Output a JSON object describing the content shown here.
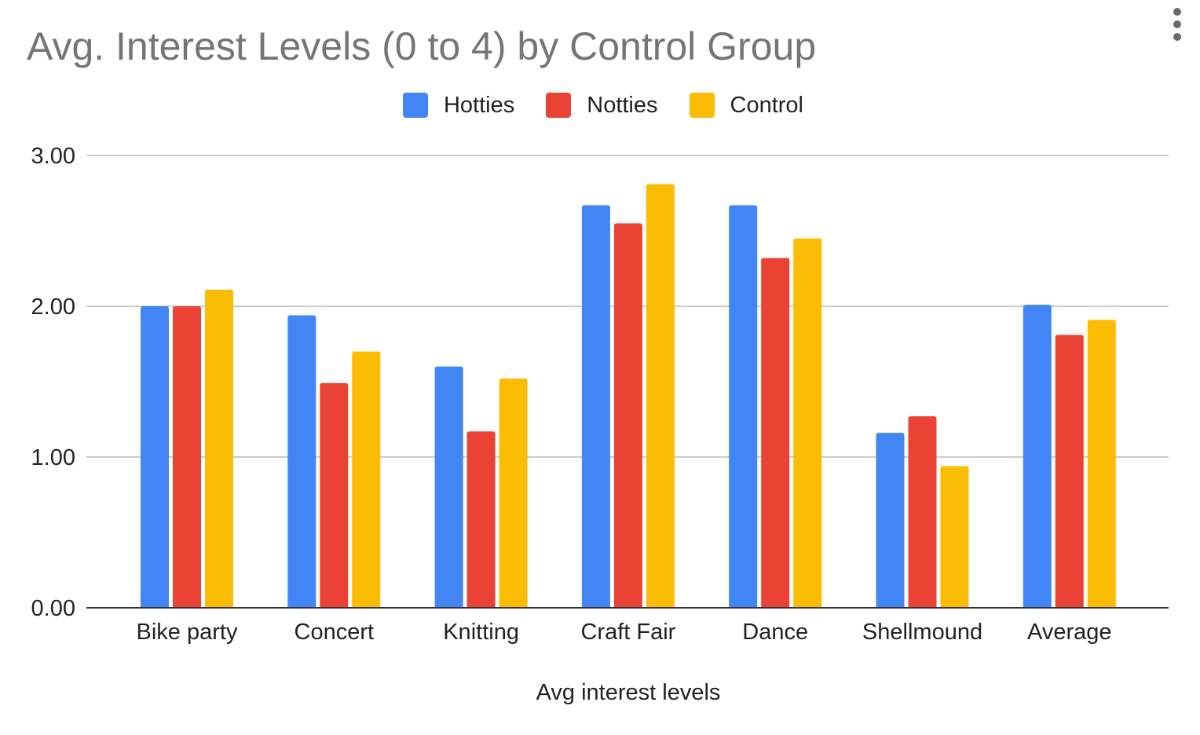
{
  "chart_data": {
    "type": "bar",
    "title": "Avg. Interest Levels (0 to 4) by Control Group",
    "xlabel": "Avg interest levels",
    "ylabel": "",
    "categories": [
      "Bike party",
      "Concert",
      "Knitting",
      "Craft Fair",
      "Dance",
      "Shellmound",
      "Average"
    ],
    "series": [
      {
        "name": "Hotties",
        "color": "#4285f4",
        "values": [
          2.0,
          1.94,
          1.6,
          2.67,
          2.67,
          1.16,
          2.01
        ]
      },
      {
        "name": "Notties",
        "color": "#ea4335",
        "values": [
          2.0,
          1.49,
          1.17,
          2.55,
          2.32,
          1.27,
          1.81
        ]
      },
      {
        "name": "Control",
        "color": "#fbbc04",
        "values": [
          2.11,
          1.7,
          1.52,
          2.81,
          2.45,
          0.94,
          1.91
        ]
      }
    ],
    "ylim": [
      0,
      3
    ],
    "yticks": [
      "0.00",
      "1.00",
      "2.00",
      "3.00"
    ],
    "ytick_values": [
      0,
      1,
      2,
      3
    ],
    "grid": true,
    "legend_position": "top"
  },
  "menu": {
    "icon": "more-vert-icon"
  }
}
